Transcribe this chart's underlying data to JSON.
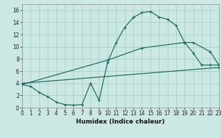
{
  "xlabel": "Humidex (Indice chaleur)",
  "bg_color": "#cce8e4",
  "grid_color": "#aacfcb",
  "line_color": "#1e6b5e",
  "xlim": [
    0,
    23
  ],
  "ylim": [
    0,
    17
  ],
  "xticks": [
    0,
    1,
    2,
    3,
    4,
    5,
    6,
    7,
    8,
    9,
    10,
    11,
    12,
    13,
    14,
    15,
    16,
    17,
    18,
    19,
    20,
    21,
    22,
    23
  ],
  "yticks": [
    0,
    2,
    4,
    6,
    8,
    10,
    12,
    14,
    16
  ],
  "line1_x": [
    0,
    1,
    2,
    3,
    4,
    5,
    6,
    7,
    8,
    9,
    10,
    11,
    12,
    13,
    14,
    15,
    16,
    17,
    18,
    19,
    20,
    21,
    22,
    23
  ],
  "line1_y": [
    3.8,
    3.5,
    2.5,
    1.8,
    0.9,
    0.5,
    0.4,
    0.5,
    4.0,
    1.2,
    7.5,
    10.7,
    13.2,
    14.8,
    15.6,
    15.8,
    14.9,
    14.5,
    13.5,
    10.7,
    9.0,
    7.0,
    7.0,
    7.0
  ],
  "line2_x": [
    0,
    10,
    14,
    19,
    20,
    22,
    23
  ],
  "line2_y": [
    3.8,
    7.8,
    9.8,
    10.7,
    10.7,
    9.2,
    7.0
  ],
  "line3_x": [
    0,
    23
  ],
  "line3_y": [
    4.0,
    6.6
  ],
  "tick_fontsize": 5.5,
  "xlabel_fontsize": 6.5
}
